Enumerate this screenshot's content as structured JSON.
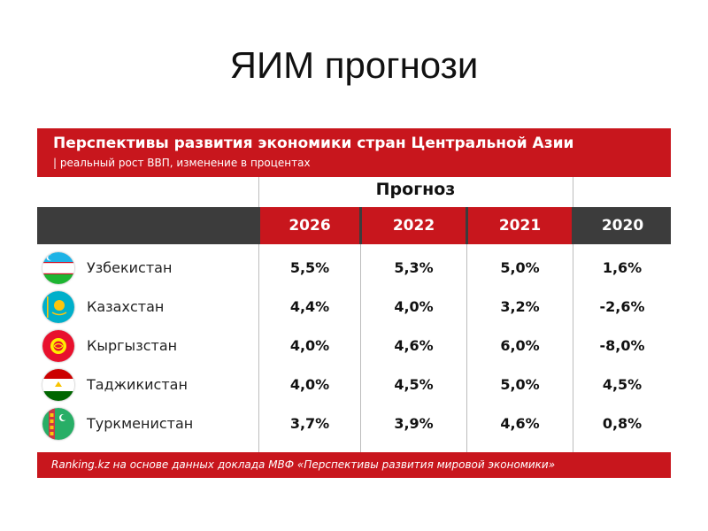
{
  "slide_title": "ЯИМ прогнози",
  "chart_data": {
    "type": "table",
    "title": "Перспективы развития экономики стран Центральной Азии",
    "subtitle": "| реальный рост ВВП, изменение в процентах",
    "group_label": "Прогноз",
    "columns": [
      "2026",
      "2022",
      "2021",
      "2020"
    ],
    "rows": [
      {
        "country": "Узбекистан",
        "values": [
          "5,5%",
          "5,3%",
          "5,0%",
          "1,6%"
        ]
      },
      {
        "country": "Казахстан",
        "values": [
          "4,4%",
          "4,0%",
          "3,2%",
          "-2,6%"
        ]
      },
      {
        "country": "Кыргызстан",
        "values": [
          "4,0%",
          "4,6%",
          "6,0%",
          "-8,0%"
        ]
      },
      {
        "country": "Таджикистан",
        "values": [
          "4,0%",
          "4,5%",
          "5,0%",
          "4,5%"
        ]
      },
      {
        "country": "Туркменистан",
        "values": [
          "3,7%",
          "3,9%",
          "4,6%",
          "0,8%"
        ]
      }
    ],
    "numeric_values": {
      "Узбекистан": [
        5.5,
        5.3,
        5.0,
        1.6
      ],
      "Казахстан": [
        4.4,
        4.0,
        3.2,
        -2.6
      ],
      "Кыргызстан": [
        4.0,
        4.6,
        6.0,
        -8.0
      ],
      "Таджикистан": [
        4.0,
        4.5,
        5.0,
        4.5
      ],
      "Туркменистан": [
        3.7,
        3.9,
        4.6,
        0.8
      ]
    },
    "source": "Ranking.kz на основе данных доклада МВФ «Перспективы развития мировой экономики»"
  },
  "flags": [
    "uzbekistan-flag-icon",
    "kazakhstan-flag-icon",
    "kyrgyzstan-flag-icon",
    "tajikistan-flag-icon",
    "turkmenistan-flag-icon"
  ],
  "colors": {
    "accent_red": "#c8161d",
    "header_dark": "#3c3c3c"
  }
}
